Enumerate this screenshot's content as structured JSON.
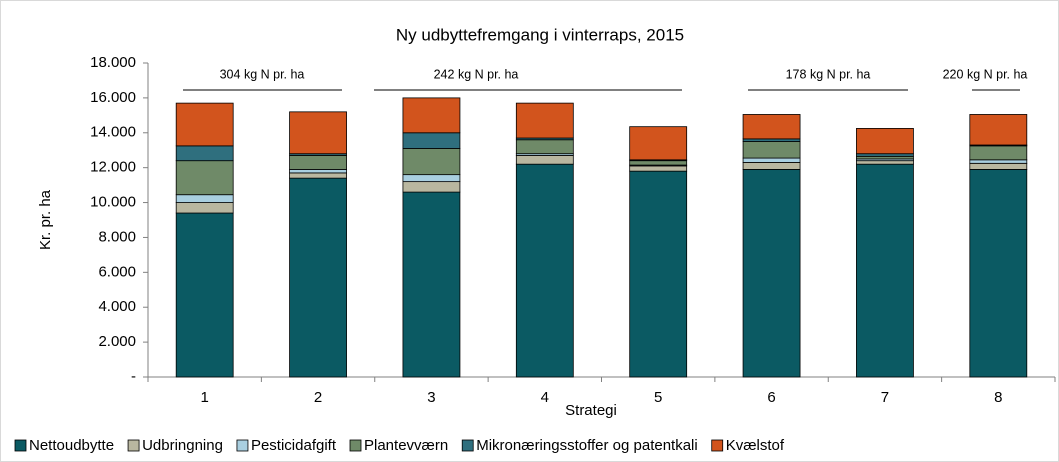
{
  "chart_data": {
    "type": "stacked_bar",
    "title": "Ny udbyttefremgang i vinterraps, 2015",
    "x_label": "Strategi",
    "y_label": "Kr. pr. ha",
    "categories": [
      "1",
      "2",
      "3",
      "4",
      "5",
      "6",
      "7",
      "8"
    ],
    "series": [
      {
        "name": "Nettoudbytte",
        "color": "#0b5a63",
        "values": [
          9400,
          11400,
          10600,
          12200,
          11800,
          11900,
          12200,
          11900
        ]
      },
      {
        "name": "Udbringning",
        "color": "#b9b7a0",
        "values": [
          600,
          300,
          600,
          500,
          300,
          400,
          200,
          350
        ]
      },
      {
        "name": "Pesticidafgift",
        "color": "#a9cfe0",
        "values": [
          450,
          200,
          400,
          100,
          50,
          250,
          100,
          200
        ]
      },
      {
        "name": "Plantevværn",
        "color": "#6f8a68",
        "values": [
          1950,
          800,
          1500,
          800,
          250,
          950,
          150,
          800
        ]
      },
      {
        "name": "Mikronæringsstoffer og patentkali",
        "color": "#2f6f7e",
        "values": [
          850,
          100,
          900,
          100,
          50,
          150,
          150,
          50
        ]
      },
      {
        "name": "Kvælstof",
        "color": "#d2541d",
        "values": [
          2450,
          2400,
          2000,
          2000,
          1900,
          1400,
          1450,
          1750
        ]
      }
    ],
    "ylim": [
      0,
      18000
    ],
    "yticks": [
      {
        "value": 0,
        "label": "-"
      },
      {
        "value": 2000,
        "label": "2.000"
      },
      {
        "value": 4000,
        "label": "4.000"
      },
      {
        "value": 6000,
        "label": "6.000"
      },
      {
        "value": 8000,
        "label": "8.000"
      },
      {
        "value": 10000,
        "label": "10.000"
      },
      {
        "value": 12000,
        "label": "12.000"
      },
      {
        "value": 14000,
        "label": "14.000"
      },
      {
        "value": 16000,
        "label": "16.000"
      },
      {
        "value": 18000,
        "label": "18.000"
      }
    ],
    "annotations": [
      "304 kg N pr. ha",
      "242 kg N pr. ha",
      "178  kg N pr. ha",
      "220  kg N pr. ha"
    ],
    "legend": "bottom"
  }
}
